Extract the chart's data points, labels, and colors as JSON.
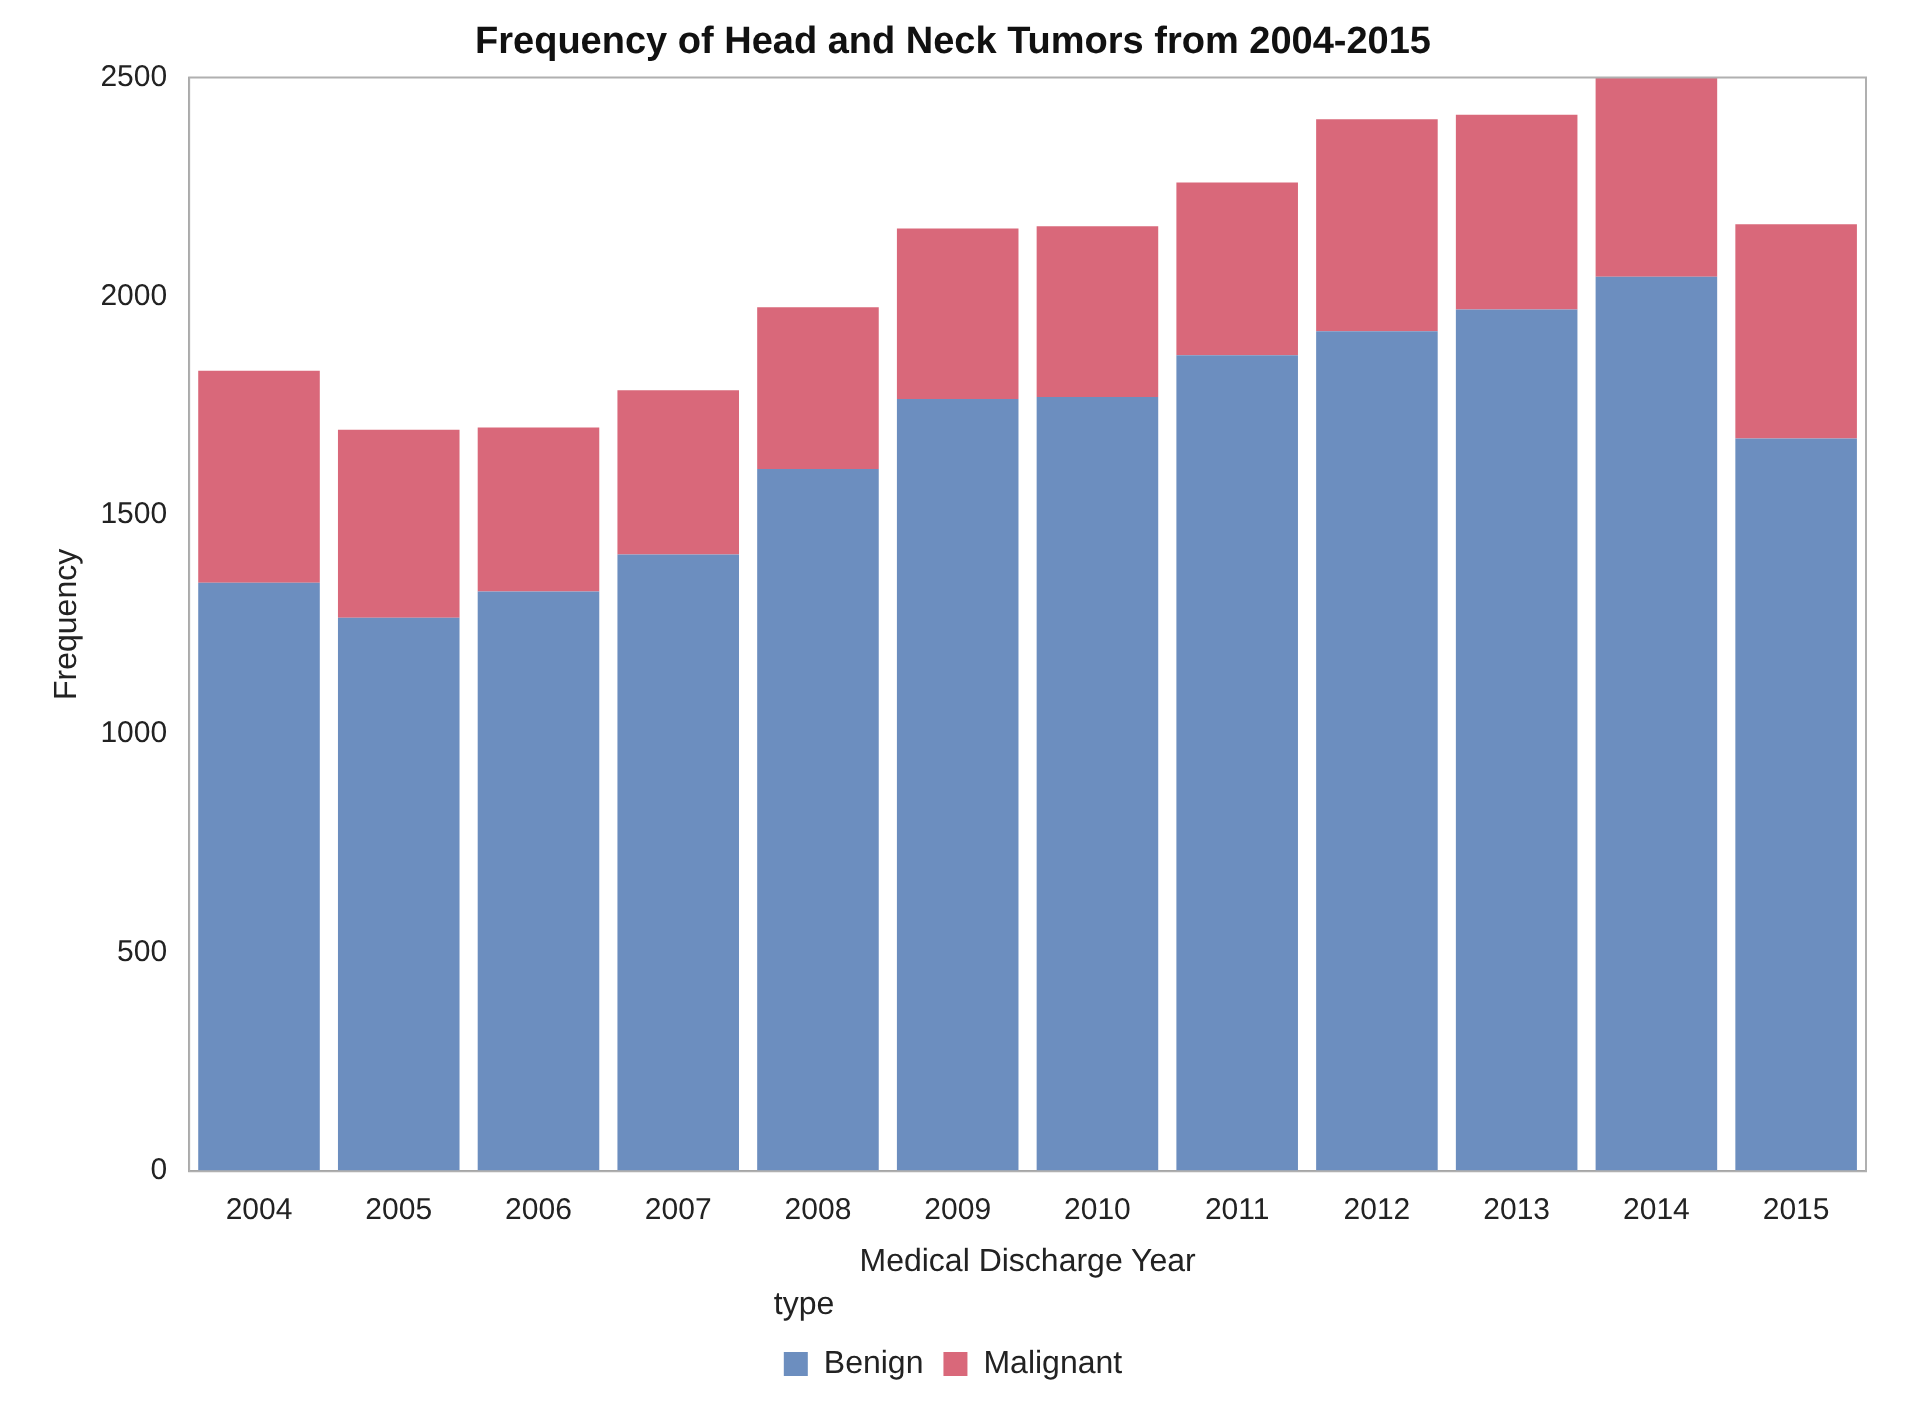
{
  "chart_data": {
    "type": "bar",
    "title": "Frequency of Head and Neck Tumors from 2004-2015",
    "xlabel": "Medical Discharge Year",
    "ylabel": "Frequency",
    "legend_title": "type",
    "categories": [
      "2004",
      "2005",
      "2006",
      "2007",
      "2008",
      "2009",
      "2010",
      "2011",
      "2012",
      "2013",
      "2014",
      "2015"
    ],
    "stacked": true,
    "series": [
      {
        "name": "Benign",
        "color": "#6c8ebf",
        "values": [
          1345,
          1265,
          1325,
          1410,
          1605,
          1765,
          1770,
          1865,
          1920,
          1970,
          2045,
          1675
        ]
      },
      {
        "name": "Malignant",
        "color": "#d9687a",
        "values": [
          485,
          430,
          375,
          375,
          370,
          390,
          390,
          395,
          485,
          445,
          455,
          490
        ]
      }
    ],
    "ylim": [
      0,
      2500
    ],
    "yticks": [
      0,
      500,
      1000,
      1500,
      2000,
      2500
    ],
    "grid": false,
    "legend": "bottom"
  }
}
